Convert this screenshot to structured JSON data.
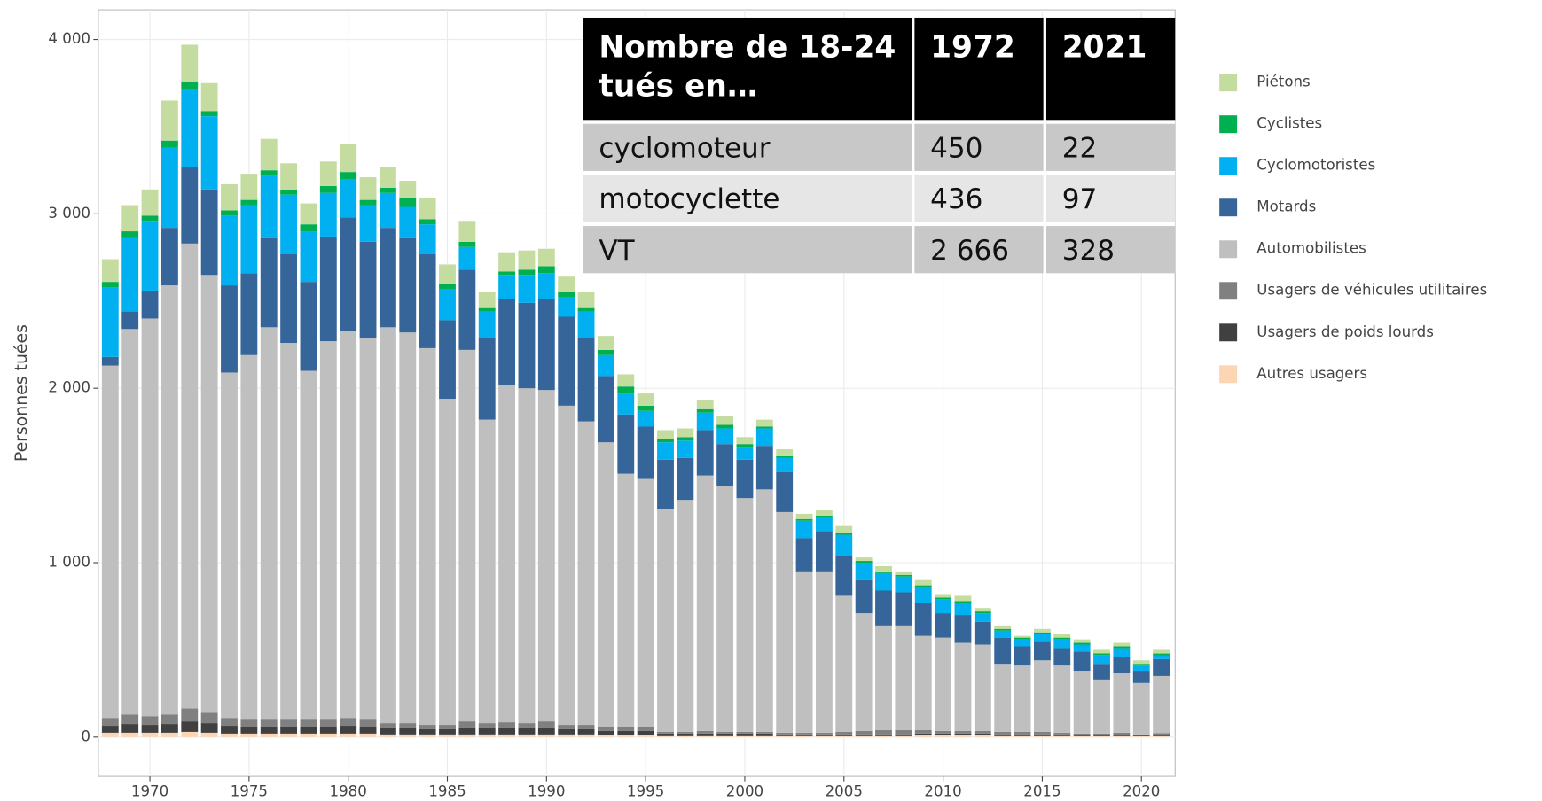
{
  "chart_data": {
    "type": "stacked_bar",
    "y_label": "Personnes tuées",
    "legend": "right",
    "grid": true,
    "x": [
      1968,
      1969,
      1970,
      1971,
      1972,
      1973,
      1974,
      1975,
      1976,
      1977,
      1978,
      1979,
      1980,
      1981,
      1982,
      1983,
      1984,
      1985,
      1986,
      1987,
      1988,
      1989,
      1990,
      1991,
      1992,
      1993,
      1994,
      1995,
      1996,
      1997,
      1998,
      1999,
      2000,
      2001,
      2002,
      2003,
      2004,
      2005,
      2006,
      2007,
      2008,
      2009,
      2010,
      2011,
      2012,
      2013,
      2014,
      2015,
      2016,
      2017,
      2018,
      2019,
      2020,
      2021
    ],
    "xlim": [
      1967.4,
      2021.7
    ],
    "xticks": [
      1970,
      1975,
      1980,
      1985,
      1990,
      1995,
      2000,
      2005,
      2010,
      2015,
      2020
    ],
    "ylim": [
      -225,
      4170
    ],
    "yticks": [
      {
        "value": 0,
        "label": "0"
      },
      {
        "value": 1000,
        "label": "1 000"
      },
      {
        "value": 2000,
        "label": "2 000"
      },
      {
        "value": 3000,
        "label": "3 000"
      },
      {
        "value": 4000,
        "label": "4 000"
      }
    ],
    "series": [
      {
        "name": "Autres usagers",
        "color": "#fcd5b4",
        "values": [
          25,
          25,
          25,
          25,
          30,
          25,
          20,
          20,
          20,
          20,
          20,
          20,
          20,
          20,
          15,
          15,
          15,
          15,
          15,
          15,
          15,
          15,
          15,
          15,
          15,
          10,
          10,
          10,
          5,
          5,
          5,
          5,
          5,
          5,
          5,
          5,
          5,
          5,
          5,
          5,
          5,
          10,
          10,
          10,
          10,
          5,
          5,
          5,
          5,
          5,
          5,
          5,
          5,
          5
        ]
      },
      {
        "name": "Usagers de poids lourds",
        "color": "#404040",
        "values": [
          40,
          50,
          45,
          50,
          60,
          55,
          45,
          40,
          40,
          40,
          40,
          40,
          45,
          40,
          35,
          35,
          30,
          30,
          35,
          35,
          35,
          35,
          35,
          30,
          30,
          25,
          25,
          25,
          15,
          15,
          15,
          15,
          15,
          15,
          10,
          10,
          10,
          10,
          10,
          10,
          10,
          10,
          10,
          10,
          10,
          10,
          10,
          10,
          10,
          5,
          5,
          5,
          5,
          7
        ]
      },
      {
        "name": "Usagers de véhicules utilitaires",
        "color": "#808080",
        "values": [
          45,
          55,
          50,
          55,
          74,
          60,
          45,
          40,
          40,
          40,
          40,
          40,
          45,
          40,
          30,
          30,
          25,
          25,
          40,
          30,
          35,
          30,
          40,
          25,
          25,
          25,
          20,
          20,
          10,
          10,
          15,
          10,
          10,
          10,
          10,
          10,
          10,
          15,
          20,
          25,
          25,
          20,
          15,
          15,
          15,
          15,
          15,
          15,
          10,
          10,
          10,
          15,
          5,
          10
        ]
      },
      {
        "name": "Automobilistes",
        "color": "#bfbfbf",
        "values": [
          2020,
          2210,
          2280,
          2460,
          2666,
          2510,
          1980,
          2090,
          2250,
          2160,
          2000,
          2170,
          2220,
          2190,
          2270,
          2240,
          2160,
          1870,
          2130,
          1740,
          1935,
          1920,
          1900,
          1830,
          1740,
          1630,
          1455,
          1425,
          1280,
          1330,
          1465,
          1410,
          1340,
          1390,
          1265,
          925,
          925,
          780,
          675,
          600,
          600,
          540,
          535,
          505,
          495,
          390,
          380,
          410,
          385,
          360,
          310,
          345,
          295,
          328
        ]
      },
      {
        "name": "Motards",
        "color": "#366699",
        "values": [
          50,
          100,
          160,
          330,
          436,
          490,
          500,
          470,
          510,
          510,
          510,
          600,
          650,
          550,
          570,
          540,
          540,
          450,
          460,
          470,
          490,
          490,
          520,
          510,
          480,
          380,
          340,
          300,
          280,
          240,
          260,
          240,
          220,
          250,
          230,
          190,
          230,
          230,
          190,
          200,
          190,
          190,
          140,
          160,
          130,
          150,
          110,
          110,
          100,
          110,
          90,
          90,
          70,
          97
        ]
      },
      {
        "name": "Cyclomotoristes",
        "color": "#00b0f0",
        "values": [
          400,
          420,
          400,
          460,
          450,
          420,
          400,
          390,
          360,
          340,
          290,
          250,
          220,
          210,
          200,
          180,
          170,
          180,
          130,
          150,
          140,
          160,
          150,
          110,
          150,
          120,
          120,
          90,
          100,
          100,
          100,
          90,
          70,
          100,
          80,
          100,
          80,
          120,
          100,
          100,
          90,
          90,
          80,
          70,
          50,
          40,
          40,
          40,
          50,
          40,
          50,
          50,
          30,
          22
        ]
      },
      {
        "name": "Cyclistes",
        "color": "#00b050",
        "values": [
          30,
          40,
          30,
          40,
          44,
          30,
          30,
          30,
          30,
          30,
          40,
          40,
          40,
          30,
          30,
          50,
          30,
          30,
          30,
          20,
          20,
          30,
          40,
          30,
          20,
          30,
          40,
          30,
          20,
          20,
          20,
          20,
          20,
          10,
          10,
          10,
          10,
          10,
          10,
          10,
          10,
          10,
          10,
          10,
          10,
          10,
          10,
          10,
          10,
          10,
          10,
          10,
          10,
          10
        ]
      },
      {
        "name": "Piétons",
        "color": "#c5dca0",
        "values": [
          130,
          150,
          150,
          230,
          210,
          160,
          150,
          150,
          180,
          150,
          120,
          140,
          160,
          130,
          120,
          100,
          120,
          110,
          120,
          90,
          110,
          110,
          100,
          90,
          90,
          80,
          70,
          70,
          50,
          50,
          50,
          50,
          40,
          40,
          40,
          30,
          30,
          40,
          20,
          30,
          20,
          30,
          20,
          30,
          20,
          20,
          10,
          20,
          20,
          20,
          20,
          20,
          20,
          21
        ]
      }
    ]
  },
  "table": {
    "header": [
      "Nombre de 18-24 tués en…",
      "1972",
      "2021"
    ],
    "rows": [
      [
        "cyclomoteur",
        "450",
        "22"
      ],
      [
        "motocyclette",
        "436",
        "97"
      ],
      [
        "VT",
        "2 666",
        "328"
      ]
    ]
  }
}
